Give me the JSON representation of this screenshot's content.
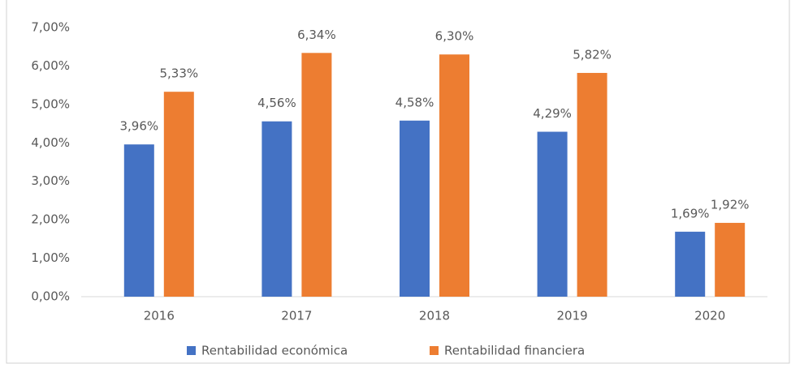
{
  "chart_data": {
    "type": "bar",
    "categories": [
      "2016",
      "2017",
      "2018",
      "2019",
      "2020"
    ],
    "series": [
      {
        "name": "Rentabilidad económica",
        "color": "#4472c4",
        "values": [
          3.96,
          4.56,
          4.58,
          4.29,
          1.69
        ],
        "value_labels": [
          "3,96%",
          "4,56%",
          "4,58%",
          "4,29%",
          "1,69%"
        ]
      },
      {
        "name": "Rentabilidad financiera",
        "color": "#ed7d31",
        "values": [
          5.33,
          6.34,
          6.3,
          5.82,
          1.92
        ],
        "value_labels": [
          "5,33%",
          "6,34%",
          "6,30%",
          "5,82%",
          "1,92%"
        ]
      }
    ],
    "ylim": [
      0,
      7
    ],
    "yticks": [
      {
        "value": 0,
        "label": "0,00%"
      },
      {
        "value": 1,
        "label": "1,00%"
      },
      {
        "value": 2,
        "label": "2,00%"
      },
      {
        "value": 3,
        "label": "3,00%"
      },
      {
        "value": 4,
        "label": "4,00%"
      },
      {
        "value": 5,
        "label": "5,00%"
      },
      {
        "value": 6,
        "label": "6,00%"
      },
      {
        "value": 7,
        "label": "7,00%"
      }
    ],
    "grid": false,
    "legend": "bottom"
  }
}
